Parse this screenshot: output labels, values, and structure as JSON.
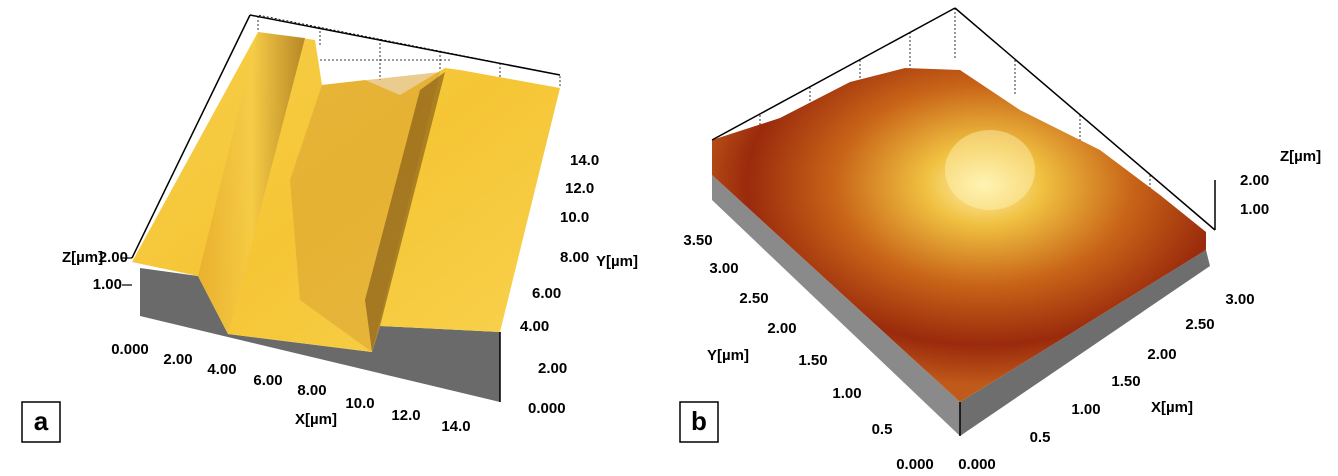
{
  "panels": [
    {
      "label": "a",
      "z_axis": {
        "title": "Z[µm]",
        "ticks": [
          "2.00",
          "1.00"
        ]
      },
      "x_axis": {
        "title": "X[µm]",
        "ticks": [
          "0.000",
          "2.00",
          "4.00",
          "6.00",
          "8.00",
          "10.0",
          "12.0",
          "14.0"
        ]
      },
      "y_axis": {
        "title": "Y[µm]",
        "ticks": [
          "0.000",
          "2.00",
          "4.00",
          "6.00",
          "8.00",
          "10.0",
          "12.0",
          "14.0"
        ]
      }
    },
    {
      "label": "b",
      "z_axis": {
        "title": "Z[µm]",
        "ticks": [
          "2.00",
          "1.00"
        ]
      },
      "x_axis": {
        "title": "X[µm]",
        "ticks": [
          "0.000",
          "0.5",
          "1.00",
          "1.50",
          "2.00",
          "2.50",
          "3.00"
        ]
      },
      "y_axis": {
        "title": "Y[µm]",
        "ticks": [
          "0.000",
          "0.5",
          "1.00",
          "1.50",
          "2.00",
          "2.50",
          "3.00",
          "3.50"
        ]
      }
    }
  ]
}
